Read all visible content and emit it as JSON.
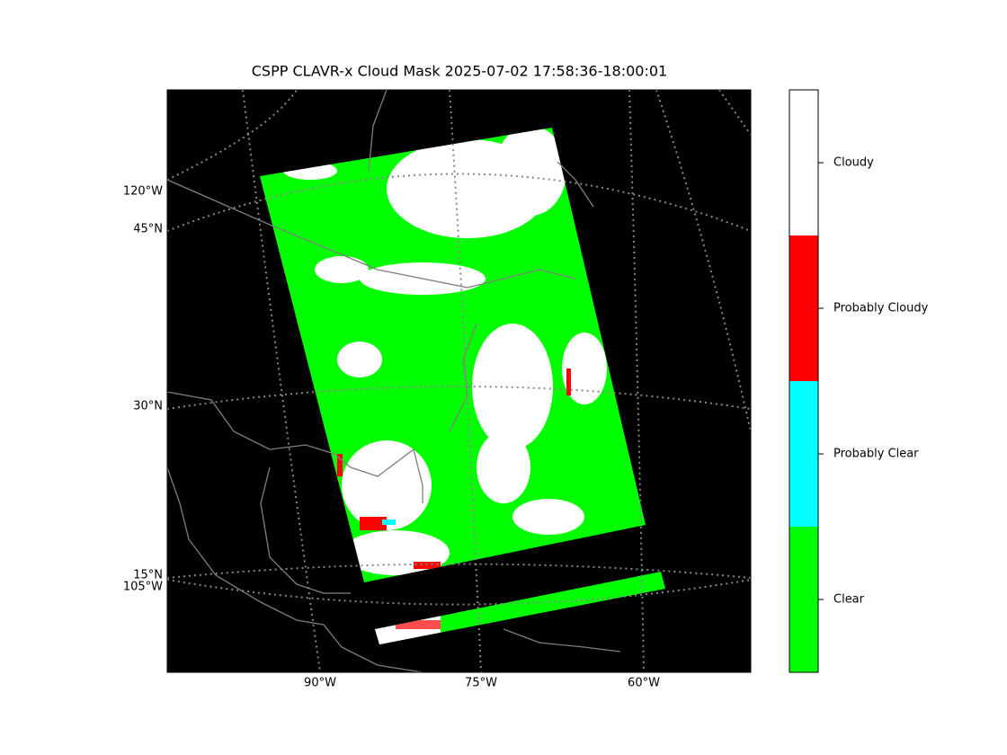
{
  "title": "CSPP CLAVR-x Cloud Mask 2025-07-02 17:58:36-18:00:01",
  "map": {
    "left_labels": [
      "120°W",
      "45°N",
      "30°N",
      "15°N",
      "105°W"
    ],
    "bottom_labels": [
      "90°W",
      "75°W",
      "60°W"
    ]
  },
  "colorbar": {
    "classes": [
      {
        "label": "Clear",
        "color": "#00ff00"
      },
      {
        "label": "Probably Clear",
        "color": "#00ffff"
      },
      {
        "label": "Probably Cloudy",
        "color": "#ff0000"
      },
      {
        "label": "Cloudy",
        "color": "#ffffff"
      }
    ]
  }
}
